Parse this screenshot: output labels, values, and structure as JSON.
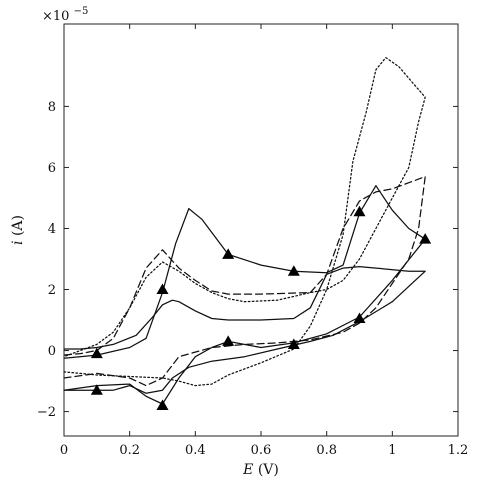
{
  "chart_data": {
    "type": "line",
    "xlabel_var": "E",
    "xlabel_unit": " (V)",
    "ylabel_var": "i",
    "ylabel_unit": " (A)",
    "y_multiplier_base": "×10",
    "y_multiplier_exp": "−5",
    "xlim": [
      0,
      1.2
    ],
    "ylim": [
      -2.8,
      10.7
    ],
    "x_ticks": [
      0,
      0.2,
      0.4,
      0.6,
      0.8,
      1,
      1.2
    ],
    "x_tick_labels": [
      "0",
      "0.2",
      "0.4",
      "0.6",
      "0.8",
      "1",
      "1.2"
    ],
    "y_ticks": [
      -2,
      0,
      2,
      4,
      6,
      8
    ],
    "y_tick_labels": [
      "−2",
      "0",
      "2",
      "4",
      "6",
      "8"
    ],
    "grid": false,
    "series": [
      {
        "style": "solid",
        "marker": "none",
        "points": [
          [
            0.0,
            -1.3
          ],
          [
            0.1,
            -1.3
          ],
          [
            0.15,
            -1.3
          ],
          [
            0.2,
            -1.15
          ],
          [
            0.25,
            -1.4
          ],
          [
            0.3,
            -1.3
          ],
          [
            0.33,
            -0.9
          ],
          [
            0.38,
            -0.55
          ],
          [
            0.45,
            -0.35
          ],
          [
            0.55,
            -0.2
          ],
          [
            0.65,
            0.05
          ],
          [
            0.75,
            0.3
          ],
          [
            0.82,
            0.5
          ],
          [
            0.9,
            0.95
          ],
          [
            1.0,
            1.6
          ],
          [
            1.1,
            2.6
          ],
          [
            1.05,
            2.6
          ],
          [
            0.95,
            2.7
          ],
          [
            0.9,
            2.75
          ],
          [
            0.85,
            2.7
          ],
          [
            0.8,
            2.5
          ],
          [
            0.75,
            1.4
          ],
          [
            0.7,
            1.05
          ],
          [
            0.6,
            1.0
          ],
          [
            0.5,
            1.0
          ],
          [
            0.45,
            1.05
          ],
          [
            0.4,
            1.3
          ],
          [
            0.35,
            1.6
          ],
          [
            0.33,
            1.65
          ],
          [
            0.3,
            1.5
          ],
          [
            0.27,
            1.1
          ],
          [
            0.22,
            0.5
          ],
          [
            0.15,
            0.2
          ],
          [
            0.1,
            0.1
          ],
          [
            0.05,
            0.05
          ],
          [
            0.0,
            0.05
          ]
        ]
      },
      {
        "style": "solid",
        "marker": "triangle",
        "points": [
          [
            0.0,
            -0.25
          ],
          [
            0.1,
            -0.15
          ],
          [
            0.2,
            0.1
          ],
          [
            0.25,
            0.4
          ],
          [
            0.3,
            1.9
          ],
          [
            0.34,
            3.5
          ],
          [
            0.38,
            4.65
          ],
          [
            0.42,
            4.3
          ],
          [
            0.5,
            3.15
          ],
          [
            0.6,
            2.8
          ],
          [
            0.7,
            2.6
          ],
          [
            0.8,
            2.55
          ],
          [
            0.85,
            2.8
          ],
          [
            0.9,
            4.5
          ],
          [
            0.95,
            5.4
          ],
          [
            1.0,
            4.6
          ],
          [
            1.05,
            4.0
          ],
          [
            1.1,
            3.65
          ],
          [
            1.0,
            2.3
          ],
          [
            0.9,
            1.1
          ],
          [
            0.8,
            0.55
          ],
          [
            0.7,
            0.25
          ],
          [
            0.6,
            0.1
          ],
          [
            0.5,
            0.3
          ],
          [
            0.45,
            0.1
          ],
          [
            0.4,
            -0.2
          ],
          [
            0.35,
            -0.9
          ],
          [
            0.3,
            -1.75
          ],
          [
            0.25,
            -1.5
          ],
          [
            0.2,
            -1.1
          ],
          [
            0.1,
            -1.15
          ],
          [
            0.0,
            -1.3
          ]
        ]
      },
      {
        "style": "dashed",
        "marker": "none",
        "points": [
          [
            0.0,
            -0.9
          ],
          [
            0.1,
            -0.75
          ],
          [
            0.2,
            -0.9
          ],
          [
            0.25,
            -1.15
          ],
          [
            0.3,
            -0.9
          ],
          [
            0.35,
            -0.2
          ],
          [
            0.45,
            0.1
          ],
          [
            0.55,
            0.2
          ],
          [
            0.65,
            0.25
          ],
          [
            0.75,
            0.35
          ],
          [
            0.85,
            0.6
          ],
          [
            0.9,
            0.9
          ],
          [
            0.95,
            1.4
          ],
          [
            1.0,
            2.2
          ],
          [
            1.05,
            3.0
          ],
          [
            1.08,
            4.0
          ],
          [
            1.1,
            5.7
          ],
          [
            1.05,
            5.5
          ],
          [
            1.0,
            5.3
          ],
          [
            0.95,
            5.2
          ],
          [
            0.9,
            4.9
          ],
          [
            0.85,
            4.0
          ],
          [
            0.8,
            2.5
          ],
          [
            0.75,
            1.9
          ],
          [
            0.6,
            1.85
          ],
          [
            0.5,
            1.85
          ],
          [
            0.45,
            1.95
          ],
          [
            0.4,
            2.3
          ],
          [
            0.35,
            2.7
          ],
          [
            0.3,
            3.3
          ],
          [
            0.25,
            2.7
          ],
          [
            0.2,
            1.4
          ],
          [
            0.15,
            0.4
          ],
          [
            0.1,
            0.0
          ],
          [
            0.05,
            -0.1
          ],
          [
            0.0,
            -0.15
          ]
        ]
      },
      {
        "style": "dotted",
        "marker": "none",
        "points": [
          [
            0.0,
            -0.7
          ],
          [
            0.1,
            -0.8
          ],
          [
            0.2,
            -0.85
          ],
          [
            0.3,
            -0.9
          ],
          [
            0.35,
            -1.0
          ],
          [
            0.4,
            -1.15
          ],
          [
            0.45,
            -1.1
          ],
          [
            0.5,
            -0.8
          ],
          [
            0.6,
            -0.4
          ],
          [
            0.7,
            0.05
          ],
          [
            0.75,
            0.8
          ],
          [
            0.8,
            2.0
          ],
          [
            0.85,
            3.8
          ],
          [
            0.88,
            6.2
          ],
          [
            0.92,
            7.8
          ],
          [
            0.95,
            9.2
          ],
          [
            0.98,
            9.6
          ],
          [
            1.02,
            9.3
          ],
          [
            1.06,
            8.8
          ],
          [
            1.1,
            8.3
          ],
          [
            1.08,
            7.5
          ],
          [
            1.05,
            6.0
          ],
          [
            1.0,
            5.0
          ],
          [
            0.95,
            4.0
          ],
          [
            0.9,
            3.0
          ],
          [
            0.85,
            2.3
          ],
          [
            0.8,
            2.0
          ],
          [
            0.75,
            1.9
          ],
          [
            0.65,
            1.65
          ],
          [
            0.55,
            1.6
          ],
          [
            0.5,
            1.7
          ],
          [
            0.45,
            1.9
          ],
          [
            0.4,
            2.2
          ],
          [
            0.35,
            2.6
          ],
          [
            0.3,
            2.9
          ],
          [
            0.25,
            2.4
          ],
          [
            0.2,
            1.4
          ],
          [
            0.15,
            0.6
          ],
          [
            0.1,
            0.2
          ],
          [
            0.05,
            0.0
          ],
          [
            0.0,
            -0.2
          ]
        ]
      }
    ],
    "markers": [
      {
        "x": 0.1,
        "y": -0.1
      },
      {
        "x": 0.3,
        "y": 2.0
      },
      {
        "x": 0.5,
        "y": 3.15
      },
      {
        "x": 0.7,
        "y": 2.6
      },
      {
        "x": 0.9,
        "y": 4.55
      },
      {
        "x": 1.1,
        "y": 3.65
      },
      {
        "x": 0.1,
        "y": -1.3
      },
      {
        "x": 0.3,
        "y": -1.8
      },
      {
        "x": 0.5,
        "y": 0.3
      },
      {
        "x": 0.7,
        "y": 0.2
      },
      {
        "x": 0.9,
        "y": 1.05
      }
    ]
  }
}
